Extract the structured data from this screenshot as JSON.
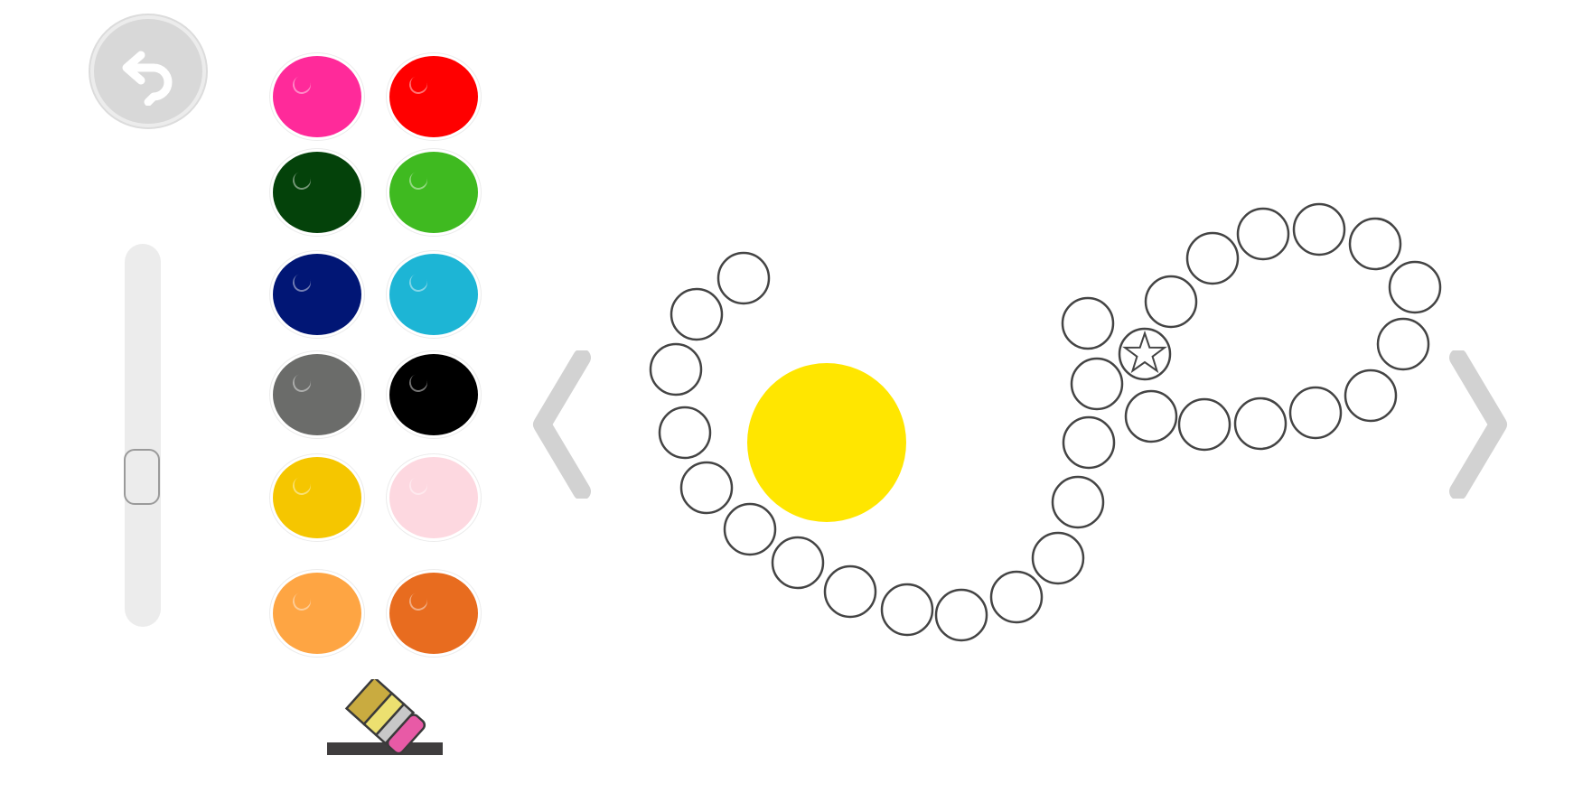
{
  "toolbar": {
    "undo_icon": "undo-arrow-icon",
    "brush_size_level": 0.62,
    "eraser_icon": "eraser-icon"
  },
  "palette": {
    "colors": [
      {
        "name": "pink",
        "hex": "#ff2a9a"
      },
      {
        "name": "red",
        "hex": "#ff0000"
      },
      {
        "name": "dark-green",
        "hex": "#04420a"
      },
      {
        "name": "green",
        "hex": "#3fba20"
      },
      {
        "name": "navy",
        "hex": "#011675"
      },
      {
        "name": "cyan",
        "hex": "#1db5d5"
      },
      {
        "name": "gray",
        "hex": "#6b6c6a"
      },
      {
        "name": "black",
        "hex": "#000000"
      },
      {
        "name": "gold",
        "hex": "#f5c600"
      },
      {
        "name": "light-pink",
        "hex": "#fdd8e0"
      },
      {
        "name": "light-orange",
        "hex": "#fea543"
      },
      {
        "name": "orange",
        "hex": "#e86c1f"
      }
    ]
  },
  "navigation": {
    "prev_icon": "chevron-left-icon",
    "next_icon": "chevron-right-icon"
  },
  "canvas": {
    "sun_color": "#ffe600",
    "dot_outline_color": "#444444",
    "star_icon": "star-icon"
  }
}
